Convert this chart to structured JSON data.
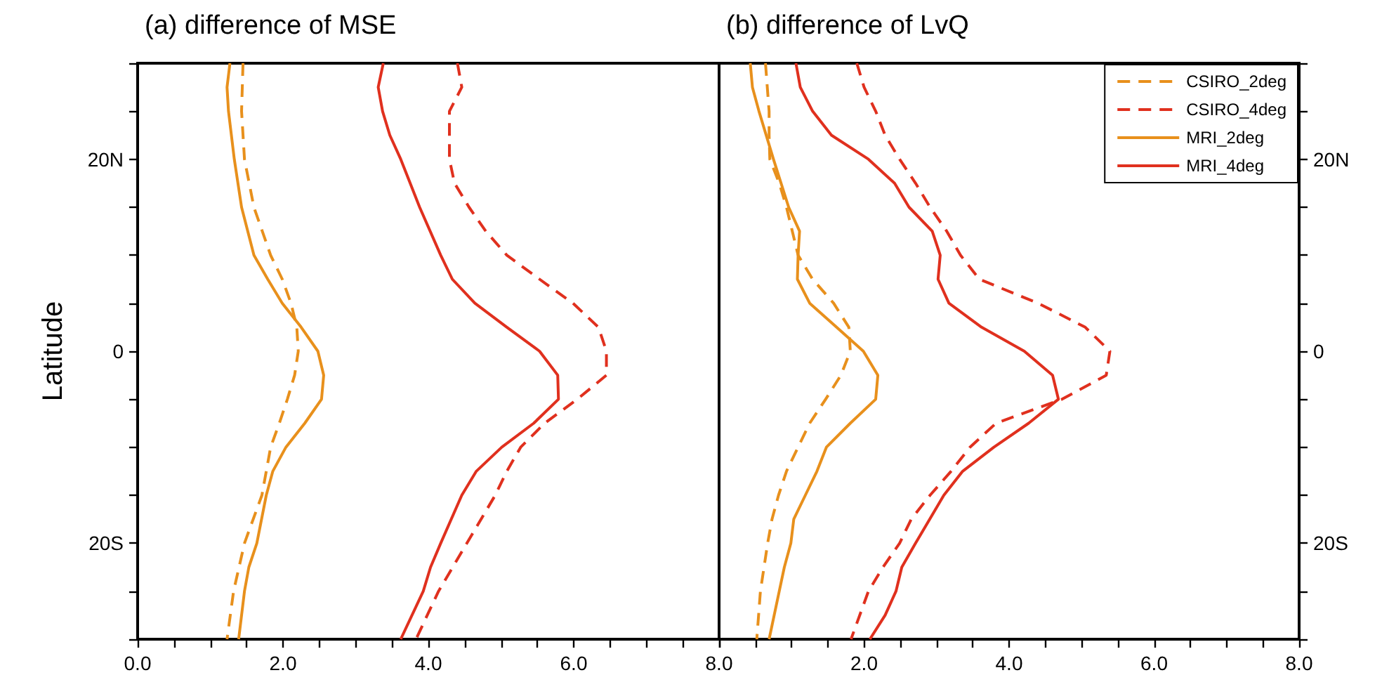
{
  "chart_data": [
    {
      "type": "line",
      "title": "(a) difference of MSE",
      "ylabel": "Latitude",
      "legend": false,
      "grid": false,
      "xlim": [
        0,
        8
      ],
      "xticks": [
        {
          "value": 0,
          "label": "0.0"
        },
        {
          "value": 0.5,
          "label": null
        },
        {
          "value": 1,
          "label": null
        },
        {
          "value": 1.5,
          "label": null
        },
        {
          "value": 2,
          "label": "2.0"
        },
        {
          "value": 2.5,
          "label": null
        },
        {
          "value": 3,
          "label": null
        },
        {
          "value": 3.5,
          "label": null
        },
        {
          "value": 4,
          "label": "4.0"
        },
        {
          "value": 4.5,
          "label": null
        },
        {
          "value": 5,
          "label": null
        },
        {
          "value": 5.5,
          "label": null
        },
        {
          "value": 6,
          "label": "6.0"
        },
        {
          "value": 6.5,
          "label": null
        },
        {
          "value": 7,
          "label": null
        },
        {
          "value": 7.5,
          "label": null
        },
        {
          "value": 8,
          "label": "8.0"
        }
      ],
      "ylim": [
        -30,
        30
      ],
      "yticks": [
        {
          "value": -30,
          "label": null
        },
        {
          "value": -25,
          "label": null
        },
        {
          "value": -20,
          "label": "20S"
        },
        {
          "value": -15,
          "label": null
        },
        {
          "value": -10,
          "label": null
        },
        {
          "value": -5,
          "label": null
        },
        {
          "value": 0,
          "label": "0"
        },
        {
          "value": 5,
          "label": null
        },
        {
          "value": 10,
          "label": null
        },
        {
          "value": 15,
          "label": null
        },
        {
          "value": 20,
          "label": "20N"
        },
        {
          "value": 25,
          "label": null
        },
        {
          "value": 30,
          "label": null
        }
      ],
      "series": [
        {
          "color": "#e8901c",
          "line_style": "dashed",
          "x": [
            1.45,
            1.43,
            1.47,
            1.6,
            1.83,
            1.99,
            2.11,
            2.19,
            2.21,
            2.16,
            2.06,
            1.95,
            1.83,
            1.77,
            1.71,
            1.47,
            1.32,
            1.23
          ],
          "values": [
            30,
            25,
            20,
            15,
            10,
            7.5,
            5,
            2.5,
            0,
            -2.5,
            -5,
            -7.5,
            -10,
            -12.5,
            -15,
            -20,
            -25,
            -30
          ]
        },
        {
          "color": "#e0301e",
          "line_style": "dashed",
          "x": [
            4.4,
            4.46,
            4.29,
            4.29,
            4.36,
            4.56,
            4.79,
            5.08,
            5.53,
            5.99,
            6.34,
            6.45,
            6.45,
            6.05,
            5.6,
            5.27,
            5.08,
            4.92,
            4.53,
            4.14,
            3.83
          ],
          "values": [
            30,
            27.5,
            25,
            20,
            17.5,
            15,
            12.5,
            10,
            7.5,
            5,
            2.5,
            0,
            -2.5,
            -5,
            -7.5,
            -10,
            -12.5,
            -15,
            -20,
            -25,
            -30
          ]
        },
        {
          "color": "#e8901c",
          "line_style": "solid",
          "x": [
            1.27,
            1.23,
            1.25,
            1.33,
            1.43,
            1.6,
            1.79,
            1.99,
            2.25,
            2.48,
            2.56,
            2.53,
            2.3,
            2.04,
            1.86,
            1.77,
            1.64,
            1.53,
            1.47,
            1.39
          ],
          "values": [
            30,
            27.5,
            25,
            20,
            15,
            10,
            7.5,
            5,
            2.5,
            0,
            -2.5,
            -5,
            -7.5,
            -10,
            -12.5,
            -15,
            -20,
            -22.5,
            -25,
            -30
          ]
        },
        {
          "color": "#e0301e",
          "line_style": "solid",
          "x": [
            3.38,
            3.31,
            3.37,
            3.47,
            3.62,
            3.88,
            4.17,
            4.33,
            4.64,
            5.08,
            5.53,
            5.78,
            5.79,
            5.45,
            5.01,
            4.66,
            4.46,
            4.17,
            4.03,
            3.93,
            3.62
          ],
          "values": [
            30,
            27.5,
            25,
            22.5,
            20,
            15,
            10,
            7.5,
            5,
            2.5,
            0,
            -2.5,
            -5,
            -7.5,
            -10,
            -12.5,
            -15,
            -20,
            -22.5,
            -25,
            -30
          ]
        }
      ]
    },
    {
      "type": "line",
      "title": "(b) difference of LvQ",
      "legend": "top right",
      "grid": false,
      "xlim": [
        0,
        8
      ],
      "xticks": [
        {
          "value": 0,
          "label": null
        },
        {
          "value": 0.5,
          "label": null
        },
        {
          "value": 1,
          "label": null
        },
        {
          "value": 1.5,
          "label": null
        },
        {
          "value": 2,
          "label": "2.0"
        },
        {
          "value": 2.5,
          "label": null
        },
        {
          "value": 3,
          "label": null
        },
        {
          "value": 3.5,
          "label": null
        },
        {
          "value": 4,
          "label": "4.0"
        },
        {
          "value": 4.5,
          "label": null
        },
        {
          "value": 5,
          "label": null
        },
        {
          "value": 5.5,
          "label": null
        },
        {
          "value": 6,
          "label": "6.0"
        },
        {
          "value": 6.5,
          "label": null
        },
        {
          "value": 7,
          "label": null
        },
        {
          "value": 7.5,
          "label": null
        },
        {
          "value": 8,
          "label": "8.0"
        }
      ],
      "y2lim": [
        -30,
        30
      ],
      "y2ticks": [
        {
          "value": -30,
          "label": null
        },
        {
          "value": -25,
          "label": null
        },
        {
          "value": -20,
          "label": "20S"
        },
        {
          "value": -15,
          "label": null
        },
        {
          "value": -10,
          "label": null
        },
        {
          "value": -5,
          "label": null
        },
        {
          "value": 0,
          "label": "0"
        },
        {
          "value": 5,
          "label": null
        },
        {
          "value": 10,
          "label": null
        },
        {
          "value": 15,
          "label": null
        },
        {
          "value": 20,
          "label": "20N"
        },
        {
          "value": 25,
          "label": null
        },
        {
          "value": 30,
          "label": null
        }
      ],
      "series": [
        {
          "name": "CSIRO_2deg",
          "color": "#e8901c",
          "line_style": "dashed",
          "axis": "y2",
          "x": [
            0.64,
            0.69,
            0.69,
            0.7,
            0.83,
            0.93,
            1.01,
            1.09,
            1.29,
            1.58,
            1.79,
            1.81,
            1.68,
            1.47,
            1.25,
            1.09,
            0.93,
            0.82,
            0.73,
            0.67,
            0.57,
            0.52
          ],
          "values": [
            30,
            25,
            22.5,
            20,
            17.5,
            15,
            12.5,
            10,
            7.5,
            5,
            2.5,
            0,
            -2.5,
            -5,
            -7.5,
            -10,
            -12.5,
            -15,
            -17.5,
            -20,
            -25,
            -30
          ]
        },
        {
          "name": "CSIRO_4deg",
          "color": "#e0301e",
          "line_style": "dashed",
          "axis": "y2",
          "x": [
            1.9,
            2.0,
            2.16,
            2.29,
            2.49,
            2.71,
            2.91,
            3.14,
            3.33,
            3.59,
            4.4,
            5.05,
            5.39,
            5.34,
            4.73,
            3.82,
            3.46,
            3.2,
            2.91,
            2.65,
            2.49,
            2.26,
            2.06,
            1.82
          ],
          "values": [
            30,
            27.5,
            25,
            22.5,
            20,
            17.5,
            15,
            12.5,
            10,
            7.5,
            5,
            2.5,
            0,
            -2.5,
            -5,
            -7.5,
            -10,
            -12.5,
            -15,
            -17.5,
            -20,
            -22.5,
            -25,
            -30
          ]
        },
        {
          "name": "MRI_2deg",
          "color": "#e8901c",
          "line_style": "solid",
          "axis": "y2",
          "x": [
            0.43,
            0.46,
            0.55,
            0.75,
            0.96,
            1.11,
            1.09,
            1.08,
            1.25,
            1.62,
            1.99,
            2.19,
            2.16,
            1.81,
            1.48,
            1.35,
            1.19,
            1.03,
            0.99,
            0.9,
            0.83,
            0.69
          ],
          "values": [
            30,
            27.5,
            25,
            20,
            15,
            12.5,
            10,
            7.5,
            5,
            2.5,
            0,
            -2.5,
            -5,
            -7.5,
            -10,
            -12.5,
            -15,
            -17.5,
            -20,
            -22.5,
            -25,
            -30
          ]
        },
        {
          "name": "MRI_4deg",
          "color": "#e0301e",
          "line_style": "solid",
          "axis": "y2",
          "x": [
            1.06,
            1.12,
            1.29,
            1.55,
            2.06,
            2.42,
            2.62,
            2.94,
            3.05,
            3.02,
            3.17,
            3.62,
            4.21,
            4.6,
            4.68,
            4.27,
            3.79,
            3.36,
            3.1,
            2.71,
            2.52,
            2.44,
            2.29,
            2.08
          ],
          "values": [
            30,
            27.5,
            25,
            22.5,
            20,
            17.5,
            15,
            12.5,
            10,
            7.5,
            5,
            2.5,
            0,
            -2.5,
            -5,
            -7.5,
            -10,
            -12.5,
            -15,
            -20,
            -22.5,
            -25,
            -27.5,
            -30
          ]
        }
      ]
    }
  ]
}
